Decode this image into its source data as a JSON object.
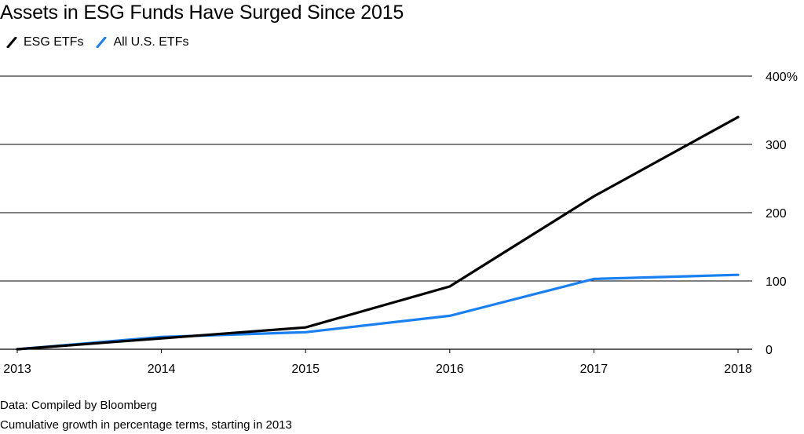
{
  "chart_data": {
    "type": "line",
    "title": "Assets in ESG Funds Have Surged Since 2015",
    "x": [
      "2013",
      "2014",
      "2015",
      "2016",
      "2017",
      "2018"
    ],
    "series": [
      {
        "name": "ESG ETFs",
        "color": "#000000",
        "values": [
          0,
          16,
          32,
          92,
          224,
          340
        ]
      },
      {
        "name": "All U.S. ETFs",
        "color": "#1a80f2",
        "values": [
          0,
          18,
          25,
          49,
          103,
          109
        ]
      }
    ],
    "ylim": [
      0,
      400
    ],
    "yticks": [
      "0",
      "100",
      "200",
      "300",
      "400%"
    ],
    "ytick_values": [
      0,
      100,
      200,
      300,
      400
    ],
    "grid": true,
    "legend": "top-left",
    "source": "Data: Compiled by Bloomberg",
    "note": "Cumulative growth in percentage terms, starting in 2013"
  }
}
